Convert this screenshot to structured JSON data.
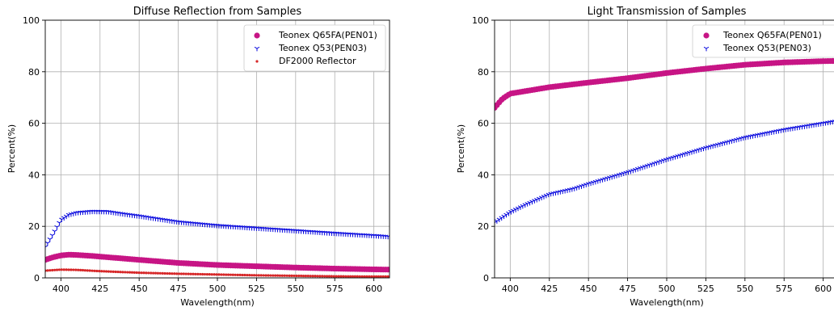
{
  "chart_data": [
    {
      "type": "scatter",
      "title": "Diffuse Reflection from Samples",
      "xlabel": "Wavelength(nm)",
      "ylabel": "Percent(%)",
      "xlim": [
        390,
        610
      ],
      "ylim": [
        0,
        100
      ],
      "xticks": [
        400,
        425,
        450,
        475,
        500,
        525,
        550,
        575,
        600
      ],
      "yticks": [
        0,
        20,
        40,
        60,
        80,
        100
      ],
      "grid": true,
      "legend": "top-right",
      "x_start": 390,
      "x_end": 610,
      "x_step": 1.5,
      "series": [
        {
          "name": "Teonex Q65FA(PEN01)",
          "color": "#c71585",
          "marker": "circle-large",
          "points": [
            [
              390,
              7.0
            ],
            [
              395,
              8.0
            ],
            [
              400,
              8.7
            ],
            [
              405,
              9.0
            ],
            [
              410,
              8.9
            ],
            [
              420,
              8.5
            ],
            [
              430,
              8.0
            ],
            [
              450,
              7.0
            ],
            [
              475,
              5.8
            ],
            [
              500,
              5.0
            ],
            [
              525,
              4.5
            ],
            [
              550,
              4.0
            ],
            [
              575,
              3.6
            ],
            [
              600,
              3.3
            ],
            [
              610,
              3.2
            ]
          ]
        },
        {
          "name": "Teonex Q53(PEN03)",
          "color": "#0000dd",
          "marker": "tri-down",
          "points": [
            [
              390,
              12.0
            ],
            [
              395,
              17.0
            ],
            [
              400,
              22.5
            ],
            [
              405,
              24.5
            ],
            [
              410,
              25.3
            ],
            [
              420,
              25.8
            ],
            [
              430,
              25.7
            ],
            [
              440,
              24.8
            ],
            [
              450,
              24.0
            ],
            [
              475,
              21.7
            ],
            [
              500,
              20.3
            ],
            [
              525,
              19.3
            ],
            [
              550,
              18.3
            ],
            [
              575,
              17.3
            ],
            [
              600,
              16.4
            ],
            [
              610,
              16.0
            ]
          ]
        },
        {
          "name": "DF2000 Reflector",
          "color": "#d62728",
          "marker": "dot",
          "points": [
            [
              390,
              2.8
            ],
            [
              400,
              3.2
            ],
            [
              410,
              3.1
            ],
            [
              425,
              2.6
            ],
            [
              450,
              2.0
            ],
            [
              475,
              1.6
            ],
            [
              500,
              1.3
            ],
            [
              525,
              1.0
            ],
            [
              550,
              0.8
            ],
            [
              575,
              0.6
            ],
            [
              600,
              0.5
            ],
            [
              610,
              0.5
            ]
          ]
        }
      ]
    },
    {
      "type": "scatter",
      "title": "Light Transmission of Samples",
      "xlabel": "Wavelength(nm)",
      "ylabel": "Percent(%)",
      "xlim": [
        390,
        610
      ],
      "ylim": [
        0,
        100
      ],
      "xticks": [
        400,
        425,
        450,
        475,
        500,
        525,
        550,
        575,
        600
      ],
      "yticks": [
        0,
        20,
        40,
        60,
        80,
        100
      ],
      "grid": true,
      "legend": "top-right",
      "x_start": 390,
      "x_end": 610,
      "x_step": 1.5,
      "series": [
        {
          "name": "Teonex Q65FA(PEN01)",
          "color": "#c71585",
          "marker": "circle-large",
          "points": [
            [
              390,
              66.0
            ],
            [
              395,
              69.5
            ],
            [
              400,
              71.5
            ],
            [
              410,
              72.5
            ],
            [
              425,
              74.0
            ],
            [
              450,
              75.8
            ],
            [
              475,
              77.5
            ],
            [
              500,
              79.5
            ],
            [
              525,
              81.2
            ],
            [
              550,
              82.7
            ],
            [
              575,
              83.6
            ],
            [
              600,
              84.1
            ],
            [
              610,
              84.2
            ]
          ]
        },
        {
          "name": "Teonex Q53(PEN03)",
          "color": "#0000dd",
          "marker": "tri-down",
          "points": [
            [
              390,
              21.5
            ],
            [
              400,
              25.5
            ],
            [
              410,
              28.5
            ],
            [
              425,
              32.5
            ],
            [
              440,
              34.5
            ],
            [
              450,
              36.5
            ],
            [
              475,
              41.0
            ],
            [
              500,
              46.0
            ],
            [
              525,
              50.5
            ],
            [
              550,
              54.5
            ],
            [
              575,
              57.5
            ],
            [
              600,
              60.0
            ],
            [
              610,
              61.0
            ]
          ]
        }
      ]
    }
  ]
}
